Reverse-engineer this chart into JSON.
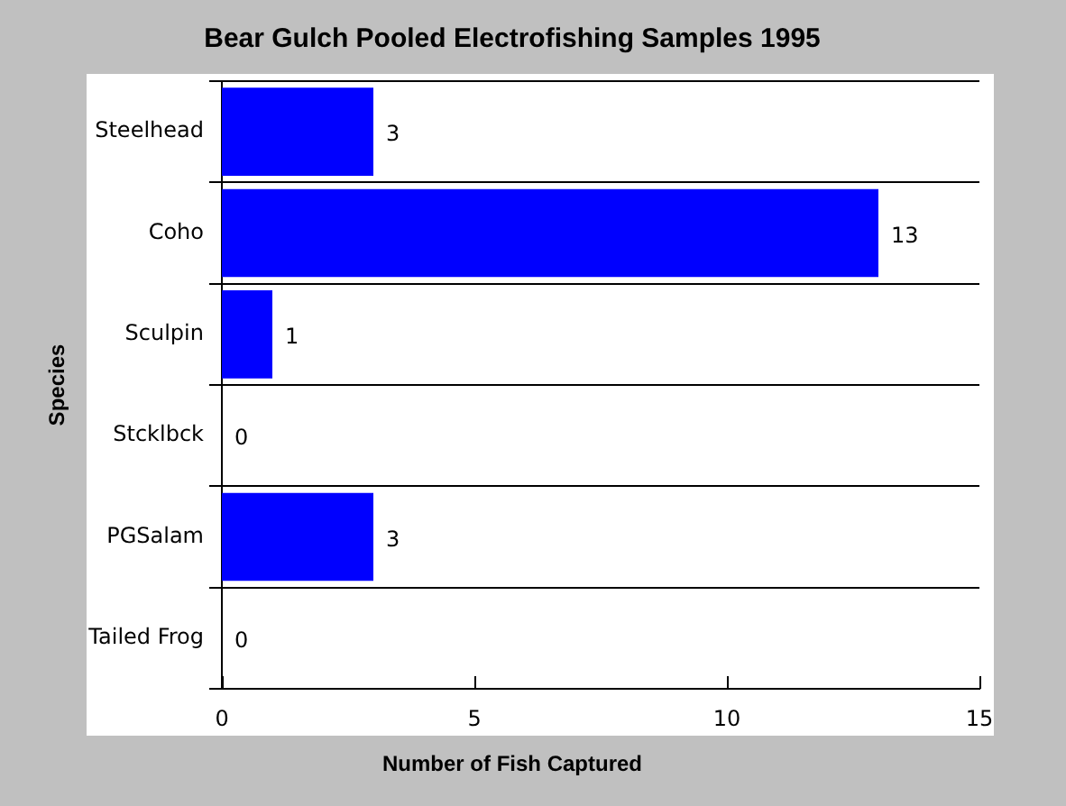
{
  "chart_data": {
    "type": "bar",
    "orientation": "horizontal",
    "title": "Bear Gulch Pooled Electrofishing Samples 1995",
    "xlabel": "Number of Fish Captured",
    "ylabel": "Species",
    "categories": [
      "Steelhead",
      "Coho",
      "Sculpin",
      "Stcklbck",
      "PGSalam",
      "Tailed Frog"
    ],
    "values": [
      3,
      13,
      1,
      0,
      3,
      0
    ],
    "color": "#0000ff",
    "xlim": [
      0,
      15
    ],
    "xticks": [
      0,
      5,
      10,
      15
    ],
    "grid": "y",
    "data_labels": true
  }
}
